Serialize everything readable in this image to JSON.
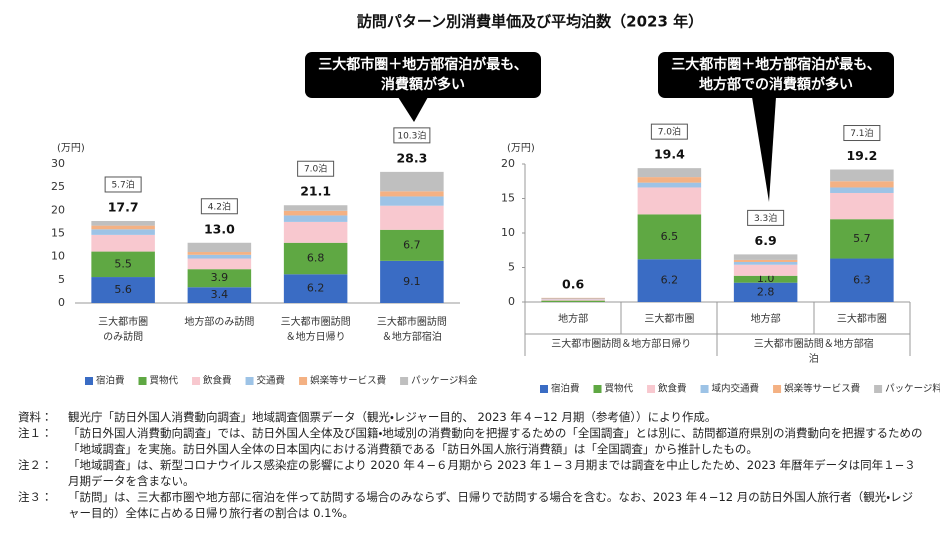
{
  "title": "訪問パターン別消費単価及び平均泊数（2023 年）",
  "chart_data": [
    {
      "type": "stacked_bar",
      "unit": "(万円)",
      "categories": [
        "三大都市圏\nのみ訪問",
        "地方部のみ訪問",
        "三大都市圏訪問\n＆地方日帰り",
        "三大都市圏訪問\n＆地方部宿泊"
      ],
      "ylim": [
        0,
        30
      ],
      "yticks": [
        0,
        5,
        10,
        15,
        20,
        25,
        30
      ],
      "grid": false,
      "series": [
        {
          "name": "宿泊費",
          "color": "#3a6cc4",
          "values": [
            5.6,
            3.4,
            6.2,
            9.1
          ],
          "value_labels": [
            "5.6",
            "3.4",
            "6.2",
            "9.1"
          ]
        },
        {
          "name": "買物代",
          "color": "#5fa843",
          "values": [
            5.5,
            3.9,
            6.8,
            6.7
          ],
          "value_labels": [
            "5.5",
            "3.9",
            "6.8",
            "6.7"
          ]
        },
        {
          "name": "飲食費",
          "color": "#f8c8cf",
          "values": [
            3.6,
            2.3,
            4.5,
            5.2
          ]
        },
        {
          "name": "交通費",
          "color": "#9dc3e6",
          "values": [
            1.2,
            0.8,
            1.4,
            2.0
          ]
        },
        {
          "name": "娯楽等サービス費",
          "color": "#f4b183",
          "values": [
            0.8,
            0.6,
            1.0,
            1.1
          ]
        },
        {
          "name": "パッケージ料金",
          "color": "#bfbfbf",
          "values": [
            1.0,
            2.0,
            1.2,
            4.2
          ]
        }
      ],
      "totals": {
        "values": [
          17.7,
          13.0,
          21.1,
          28.3
        ],
        "value_labels": [
          "17.7",
          "13.0",
          "21.1",
          "28.3"
        ]
      },
      "stays": [
        "5.7泊",
        "4.2泊",
        "7.0泊",
        "10.3泊"
      ]
    },
    {
      "type": "stacked_bar",
      "unit": "(万円)",
      "categories": [
        "地方部",
        "三大都市圏",
        "地方部",
        "三大都市圏"
      ],
      "groups": [
        "三大都市圏訪問＆地方部日帰り",
        "三大都市圏訪問＆地方部宿泊"
      ],
      "ylim": [
        0,
        20
      ],
      "yticks": [
        0,
        5,
        10,
        15,
        20
      ],
      "grid": false,
      "series": [
        {
          "name": "宿泊費",
          "color": "#3a6cc4",
          "values": [
            0,
            6.2,
            2.8,
            6.3
          ],
          "value_labels": [
            null,
            "6.2",
            "2.8",
            "6.3"
          ]
        },
        {
          "name": "買物代",
          "color": "#5fa843",
          "values": [
            0.2,
            6.5,
            1.0,
            5.7
          ],
          "value_labels": [
            null,
            "6.5",
            "1.0",
            "5.7"
          ]
        },
        {
          "name": "飲食費",
          "color": "#f8c8cf",
          "values": [
            0.2,
            3.9,
            1.6,
            3.8
          ]
        },
        {
          "name": "域内交通費",
          "color": "#9dc3e6",
          "values": [
            0.1,
            0.7,
            0.4,
            0.8
          ]
        },
        {
          "name": "娯楽等サービス費",
          "color": "#f4b183",
          "values": [
            0.1,
            0.8,
            0.3,
            0.9
          ]
        },
        {
          "name": "パッケージ料金",
          "color": "#bfbfbf",
          "values": [
            0,
            1.3,
            0.8,
            1.7
          ]
        }
      ],
      "totals": {
        "values": [
          0.6,
          19.4,
          6.9,
          19.2
        ],
        "value_labels": [
          "0.6",
          "19.4",
          "6.9",
          "19.2"
        ]
      },
      "stays": [
        null,
        "7.0泊",
        "3.3泊",
        "7.1泊"
      ]
    }
  ],
  "callouts": [
    "三大都市圏＋地方部宿泊が最も、\n消費額が多い",
    "三大都市圏＋地方部宿泊が最も、\n地方部での消費額が多い"
  ],
  "notes": [
    {
      "label": "資料：",
      "text": "観光庁「訪日外国人消費動向調査」地域調査個票データ（観光・レジャー目的、 2023 年４−12 月期（参考値））により作成。"
    },
    {
      "label": "注１：",
      "text": "「訪日外国人消費動向調査」では、訪日外国人全体及び国籍・地域別の消費動向を把握するための「全国調査」とは別に、訪問都道府県別の消費動向を把握するための「地域調査」を実施。訪日外国人全体の日本国内における消費額である「訪日外国人旅行消費額」は「全国調査」から推計したもの。"
    },
    {
      "label": "注２：",
      "text": "「地域調査」は、新型コロナウイルス感染症の影響により 2020 年４−６月期から 2023 年１−３月期までは調査を中止したため、2023 年暦年データは同年１−３月期データを含まない。"
    },
    {
      "label": "注３：",
      "text": "「訪問」は、三大都市圏や地方部に宿泊を伴って訪問する場合のみならず、日帰りで訪問する場合を含む。なお、2023 年４−12 月の訪日外国人旅行者（観光・レジャー目的）全体に占める日帰り旅行者の割合は 0.1%。"
    }
  ]
}
